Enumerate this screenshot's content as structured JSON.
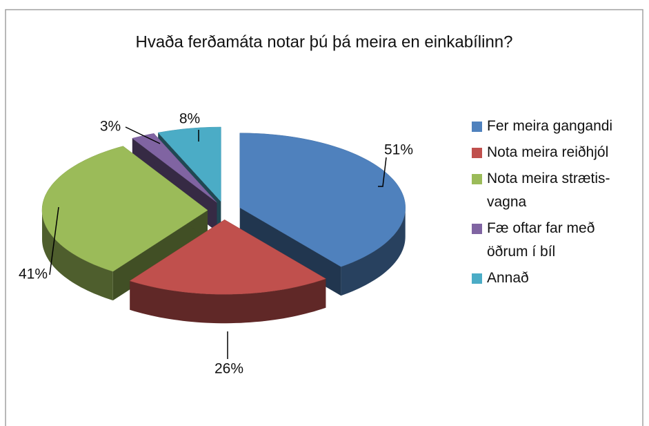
{
  "chart_data": {
    "type": "pie3d",
    "title": "Hvaða ferðamáta notar þú þá meira en einkabílinn?",
    "categories": [
      "Fer meira gangandi",
      "Nota meira reiðhjól",
      "Nota meira strætis-vagna",
      "Fæ oftar far með öðrum í bíl",
      "Annað"
    ],
    "values": [
      51,
      26,
      41,
      3,
      8
    ],
    "value_labels": [
      "51%",
      "26%",
      "41%",
      "3%",
      "8%"
    ],
    "colors": [
      "#4f81bd",
      "#c0504d",
      "#9bbb59",
      "#8064a2",
      "#4bacc6"
    ],
    "legend": "right"
  }
}
